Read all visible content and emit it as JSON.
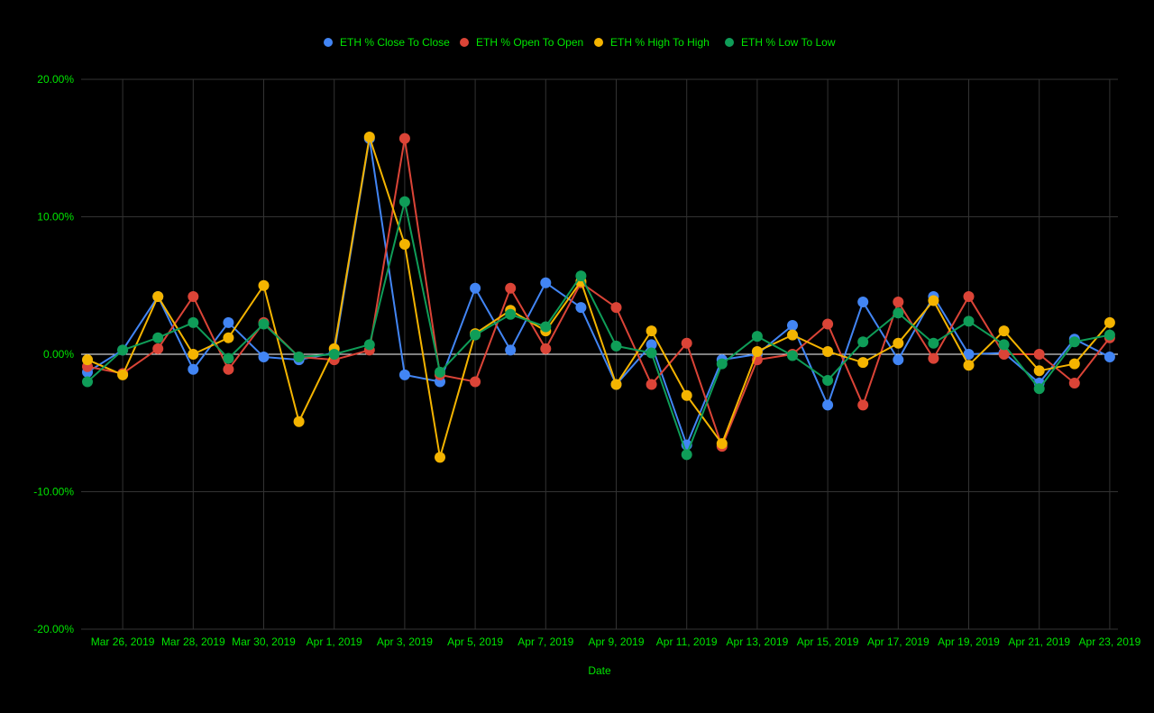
{
  "chart_data": {
    "type": "line",
    "title": "",
    "xlabel": "Date",
    "ylabel": "",
    "ylim": [
      -20,
      20
    ],
    "yticks": [
      "20.00%",
      "10.00%",
      "0.00%",
      "-10.00%",
      "-20.00%"
    ],
    "ytick_values": [
      20,
      10,
      0,
      -10,
      -20
    ],
    "xticks": [
      "Mar 26, 2019",
      "Mar 28, 2019",
      "Mar 30, 2019",
      "Apr 1, 2019",
      "Apr 3, 2019",
      "Apr 5, 2019",
      "Apr 7, 2019",
      "Apr 9, 2019",
      "Apr 11, 2019",
      "Apr 13, 2019",
      "Apr 15, 2019",
      "Apr 17, 2019",
      "Apr 19, 2019",
      "Apr 21, 2019",
      "Apr 23, 2019"
    ],
    "x": [
      "Mar 25, 2019",
      "Mar 26, 2019",
      "Mar 27, 2019",
      "Mar 28, 2019",
      "Mar 29, 2019",
      "Mar 30, 2019",
      "Mar 31, 2019",
      "Apr 1, 2019",
      "Apr 2, 2019",
      "Apr 3, 2019",
      "Apr 4, 2019",
      "Apr 5, 2019",
      "Apr 6, 2019",
      "Apr 7, 2019",
      "Apr 8, 2019",
      "Apr 9, 2019",
      "Apr 10, 2019",
      "Apr 11, 2019",
      "Apr 12, 2019",
      "Apr 13, 2019",
      "Apr 14, 2019",
      "Apr 15, 2019",
      "Apr 16, 2019",
      "Apr 17, 2019",
      "Apr 18, 2019",
      "Apr 19, 2019",
      "Apr 20, 2019",
      "Apr 21, 2019",
      "Apr 22, 2019",
      "Apr 23, 2019"
    ],
    "grid": true,
    "legend_position": "top-center",
    "zero_line_color": "#ffffff",
    "text_color": "#00e600",
    "grid_color": "#333333",
    "series": [
      {
        "name": "ETH % Close To Close",
        "color": "#4285f4",
        "values": [
          -1.3,
          0.3,
          4.2,
          -1.1,
          2.3,
          -0.2,
          -0.4,
          0.1,
          15.7,
          -1.5,
          -2.0,
          4.8,
          0.3,
          5.2,
          3.4,
          -2.2,
          0.7,
          -6.6,
          -0.4,
          0.0,
          2.1,
          -3.7,
          3.8,
          -0.4,
          4.2,
          0.0,
          0.1,
          -2.1,
          1.1,
          -0.2
        ]
      },
      {
        "name": "ETH % Open To Open",
        "color": "#db4437",
        "values": [
          -0.9,
          -1.4,
          0.4,
          4.2,
          -1.1,
          2.3,
          -0.2,
          -0.4,
          0.3,
          15.7,
          -1.5,
          -2.0,
          4.8,
          0.4,
          5.2,
          3.4,
          -2.2,
          0.8,
          -6.7,
          -0.4,
          0.0,
          2.2,
          -3.7,
          3.8,
          -0.3,
          4.2,
          0.0,
          0.0,
          -2.1,
          1.2
        ]
      },
      {
        "name": "ETH % High To High",
        "color": "#f4b400",
        "values": [
          -0.4,
          -1.5,
          4.2,
          0.0,
          1.2,
          5.0,
          -4.9,
          0.4,
          15.8,
          8.0,
          -7.5,
          1.5,
          3.2,
          1.7,
          5.3,
          -2.2,
          1.7,
          -3.0,
          -6.5,
          0.2,
          1.4,
          0.2,
          -0.6,
          0.8,
          3.9,
          -0.8,
          1.7,
          -1.2,
          -0.7,
          2.3
        ]
      },
      {
        "name": "ETH % Low To Low",
        "color": "#0f9d58",
        "values": [
          -2.0,
          0.3,
          1.2,
          2.3,
          -0.3,
          2.2,
          -0.2,
          0.0,
          0.7,
          11.1,
          -1.3,
          1.4,
          2.9,
          2.0,
          5.7,
          0.6,
          0.1,
          -7.3,
          -0.7,
          1.3,
          -0.1,
          -1.9,
          0.9,
          3.0,
          0.8,
          2.4,
          0.7,
          -2.5,
          0.9,
          1.4
        ]
      }
    ]
  }
}
